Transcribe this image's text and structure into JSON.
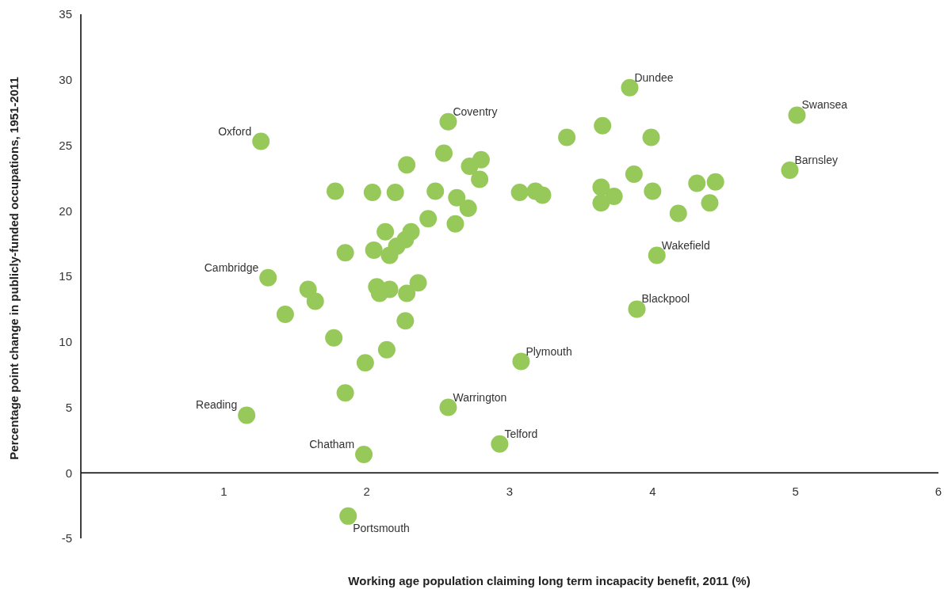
{
  "chart_data": {
    "type": "scatter",
    "xlabel": "Working age population claiming long term incapacity benefit, 2011 (%)",
    "ylabel": "Percentage point change in publicly-funded occupations, 1951-2011",
    "xlim": [
      0,
      6
    ],
    "xticks": [
      1,
      2,
      3,
      4,
      5,
      6
    ],
    "ylim": [
      -5,
      35
    ],
    "yticks": [
      -5,
      0,
      5,
      10,
      15,
      20,
      25,
      30,
      35
    ],
    "grid": false,
    "marker": "circle",
    "series": [
      {
        "color": "#97c95a",
        "x": [
          1.26,
          1.31,
          1.16,
          1.98,
          1.87,
          2.57,
          2.57,
          2.93,
          3.08,
          3.84,
          5.01,
          4.96,
          4.03,
          3.89,
          1.78,
          1.85,
          1.59,
          1.64,
          1.43,
          1.77,
          1.85,
          1.99,
          2.14,
          2.04,
          2.28,
          2.2,
          2.13,
          2.05,
          2.16,
          2.21,
          2.27,
          2.31,
          2.43,
          2.48,
          2.54,
          2.07,
          2.09,
          2.16,
          2.28,
          2.36,
          2.27,
          2.72,
          2.8,
          2.79,
          2.63,
          2.71,
          2.62,
          3.07,
          3.18,
          3.23,
          3.4,
          3.65,
          3.99,
          3.87,
          3.64,
          3.64,
          3.73,
          4.0,
          4.18,
          4.31,
          4.44,
          4.4
        ],
        "values": [
          25.3,
          14.9,
          4.4,
          1.4,
          -3.3,
          26.8,
          5.0,
          2.2,
          8.5,
          29.4,
          27.3,
          23.1,
          16.6,
          12.5,
          21.5,
          16.8,
          14.0,
          13.1,
          12.1,
          10.3,
          6.1,
          8.4,
          9.4,
          21.4,
          23.5,
          21.4,
          18.4,
          17.0,
          16.6,
          17.3,
          17.8,
          18.4,
          19.4,
          21.5,
          24.4,
          14.2,
          13.7,
          14.0,
          13.7,
          14.5,
          11.6,
          23.4,
          23.9,
          22.4,
          21.0,
          20.2,
          19.0,
          21.4,
          21.5,
          21.2,
          25.6,
          26.5,
          25.6,
          22.8,
          21.8,
          20.6,
          21.1,
          21.5,
          19.8,
          22.1,
          22.2,
          20.6
        ]
      }
    ],
    "annotations": [
      {
        "text": "Oxford",
        "x": 1.26,
        "y": 25.3
      },
      {
        "text": "Cambridge",
        "x": 1.31,
        "y": 14.9
      },
      {
        "text": "Reading",
        "x": 1.16,
        "y": 4.4
      },
      {
        "text": "Chatham",
        "x": 1.98,
        "y": 1.4
      },
      {
        "text": "Portsmouth",
        "x": 1.87,
        "y": -3.3
      },
      {
        "text": "Coventry",
        "x": 2.57,
        "y": 26.8
      },
      {
        "text": "Warrington",
        "x": 2.57,
        "y": 5.0
      },
      {
        "text": "Telford",
        "x": 2.93,
        "y": 2.2
      },
      {
        "text": "Plymouth",
        "x": 3.08,
        "y": 8.5
      },
      {
        "text": "Dundee",
        "x": 3.84,
        "y": 29.4
      },
      {
        "text": "Swansea",
        "x": 5.01,
        "y": 27.3
      },
      {
        "text": "Barnsley",
        "x": 4.96,
        "y": 23.1
      },
      {
        "text": "Wakefield",
        "x": 4.03,
        "y": 16.6
      },
      {
        "text": "Blackpool",
        "x": 3.89,
        "y": 12.5
      }
    ]
  }
}
